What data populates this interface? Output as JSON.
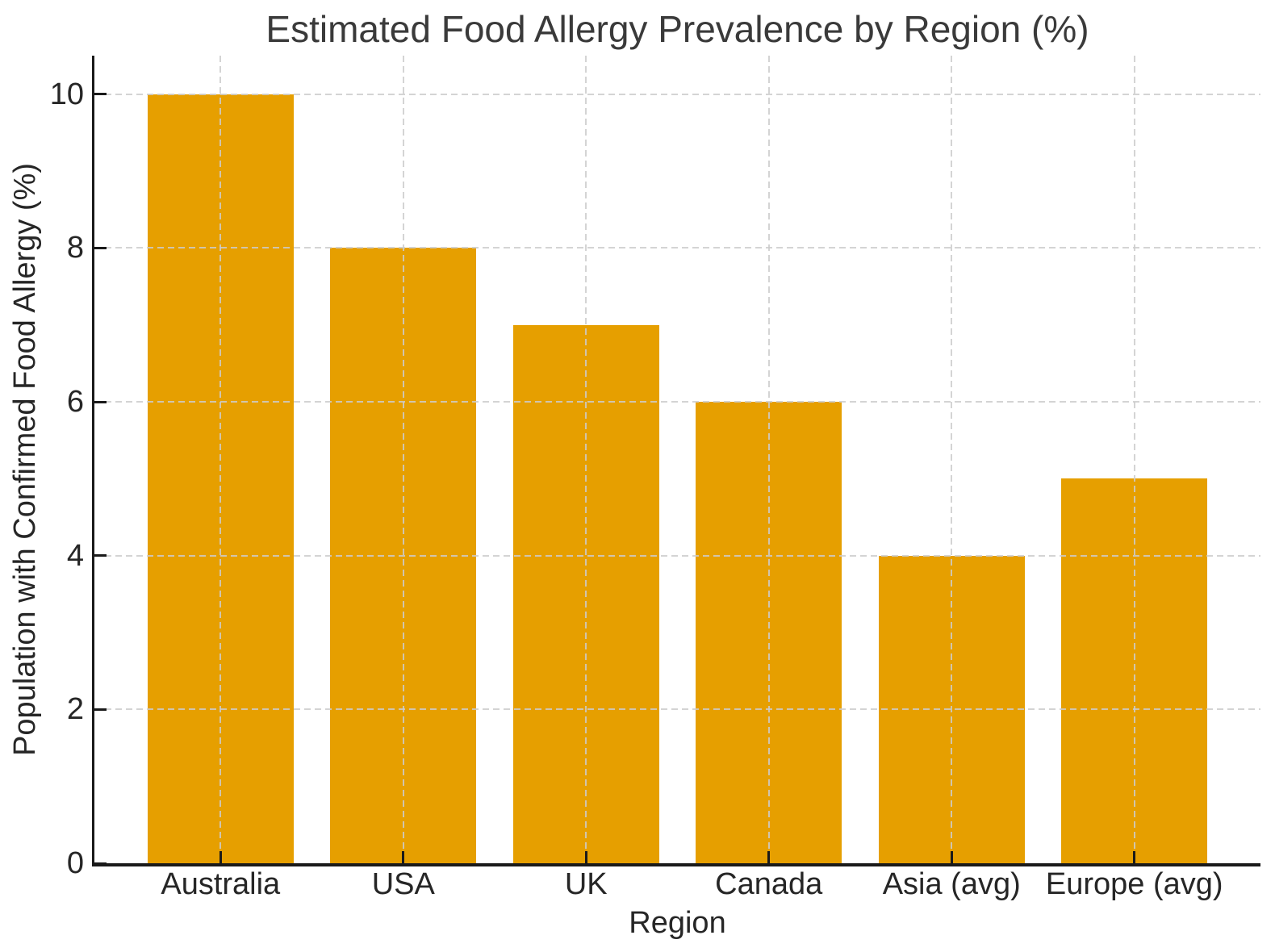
{
  "chart_data": {
    "type": "bar",
    "title": "Estimated Food Allergy Prevalence by Region (%)",
    "xlabel": "Region",
    "ylabel": "Population with Confirmed Food Allergy (%)",
    "categories": [
      "Australia",
      "USA",
      "UK",
      "Canada",
      "Asia (avg)",
      "Europe (avg)"
    ],
    "values": [
      10,
      8,
      7,
      6,
      4,
      5
    ],
    "yticks": [
      0,
      2,
      4,
      6,
      8,
      10
    ],
    "ylim": [
      0,
      10.5
    ],
    "xlim": [
      -0.69,
      5.69
    ],
    "bar_width_units": 0.8,
    "grid": {
      "visible": true,
      "style": "dashed",
      "axes": "both",
      "drawn_above_bars": true
    },
    "legend": "none",
    "colors": {
      "bar": "#E69F00",
      "grid": "#CCCCCC",
      "spine": "#1A1A1A",
      "tick_label": "#262626",
      "title": "#3A3A3A"
    }
  }
}
